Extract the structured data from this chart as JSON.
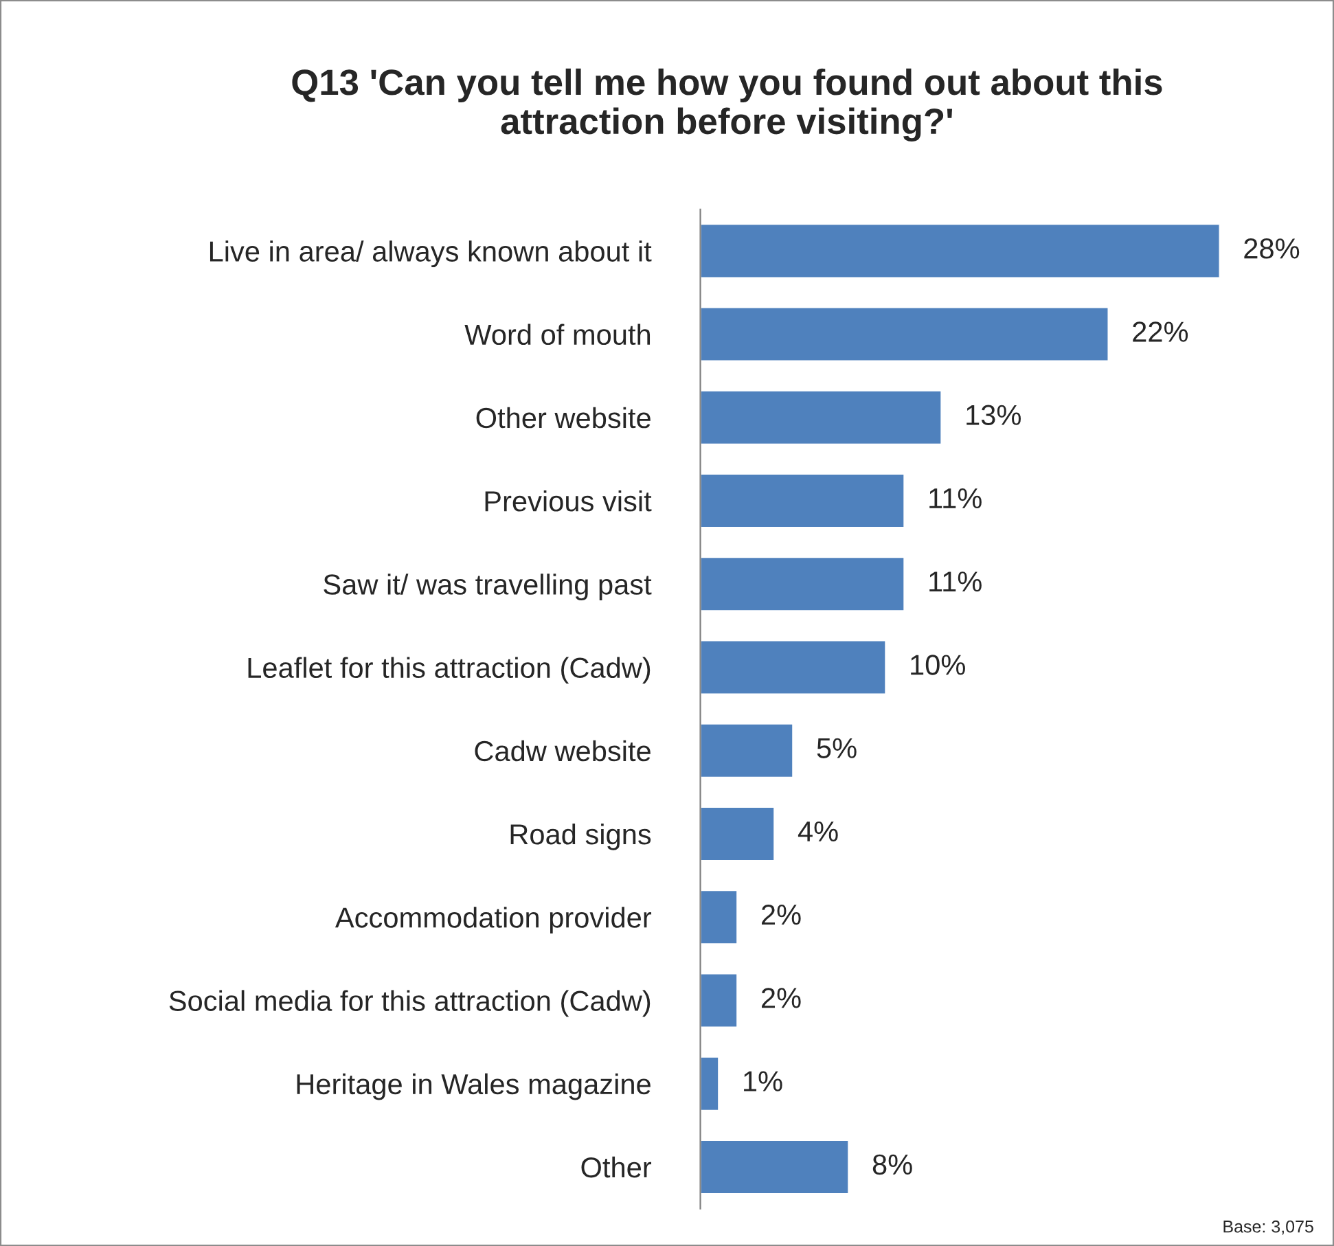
{
  "chart_data": {
    "type": "bar",
    "orientation": "horizontal",
    "title": "Q13 'Can you tell me how you found out about this\nattraction before visiting?'",
    "categories": [
      "Live in area/ always known about it",
      "Word of mouth",
      "Other website",
      "Previous visit",
      "Saw it/ was travelling past",
      "Leaflet for this attraction (Cadw)",
      "Cadw website",
      "Road signs",
      "Accommodation provider",
      "Social media for this attraction (Cadw)",
      "Heritage in Wales magazine",
      "Other"
    ],
    "values": [
      28,
      22,
      13,
      11,
      11,
      10,
      5,
      4,
      2,
      2,
      1,
      8
    ],
    "value_labels": [
      "28%",
      "22%",
      "13%",
      "11%",
      "11%",
      "10%",
      "5%",
      "4%",
      "2%",
      "2%",
      "1%",
      "8%"
    ],
    "color": "#4f81bd",
    "tick_labels": "y",
    "grid": false,
    "annotations": [
      "Base: 3,075"
    ]
  }
}
